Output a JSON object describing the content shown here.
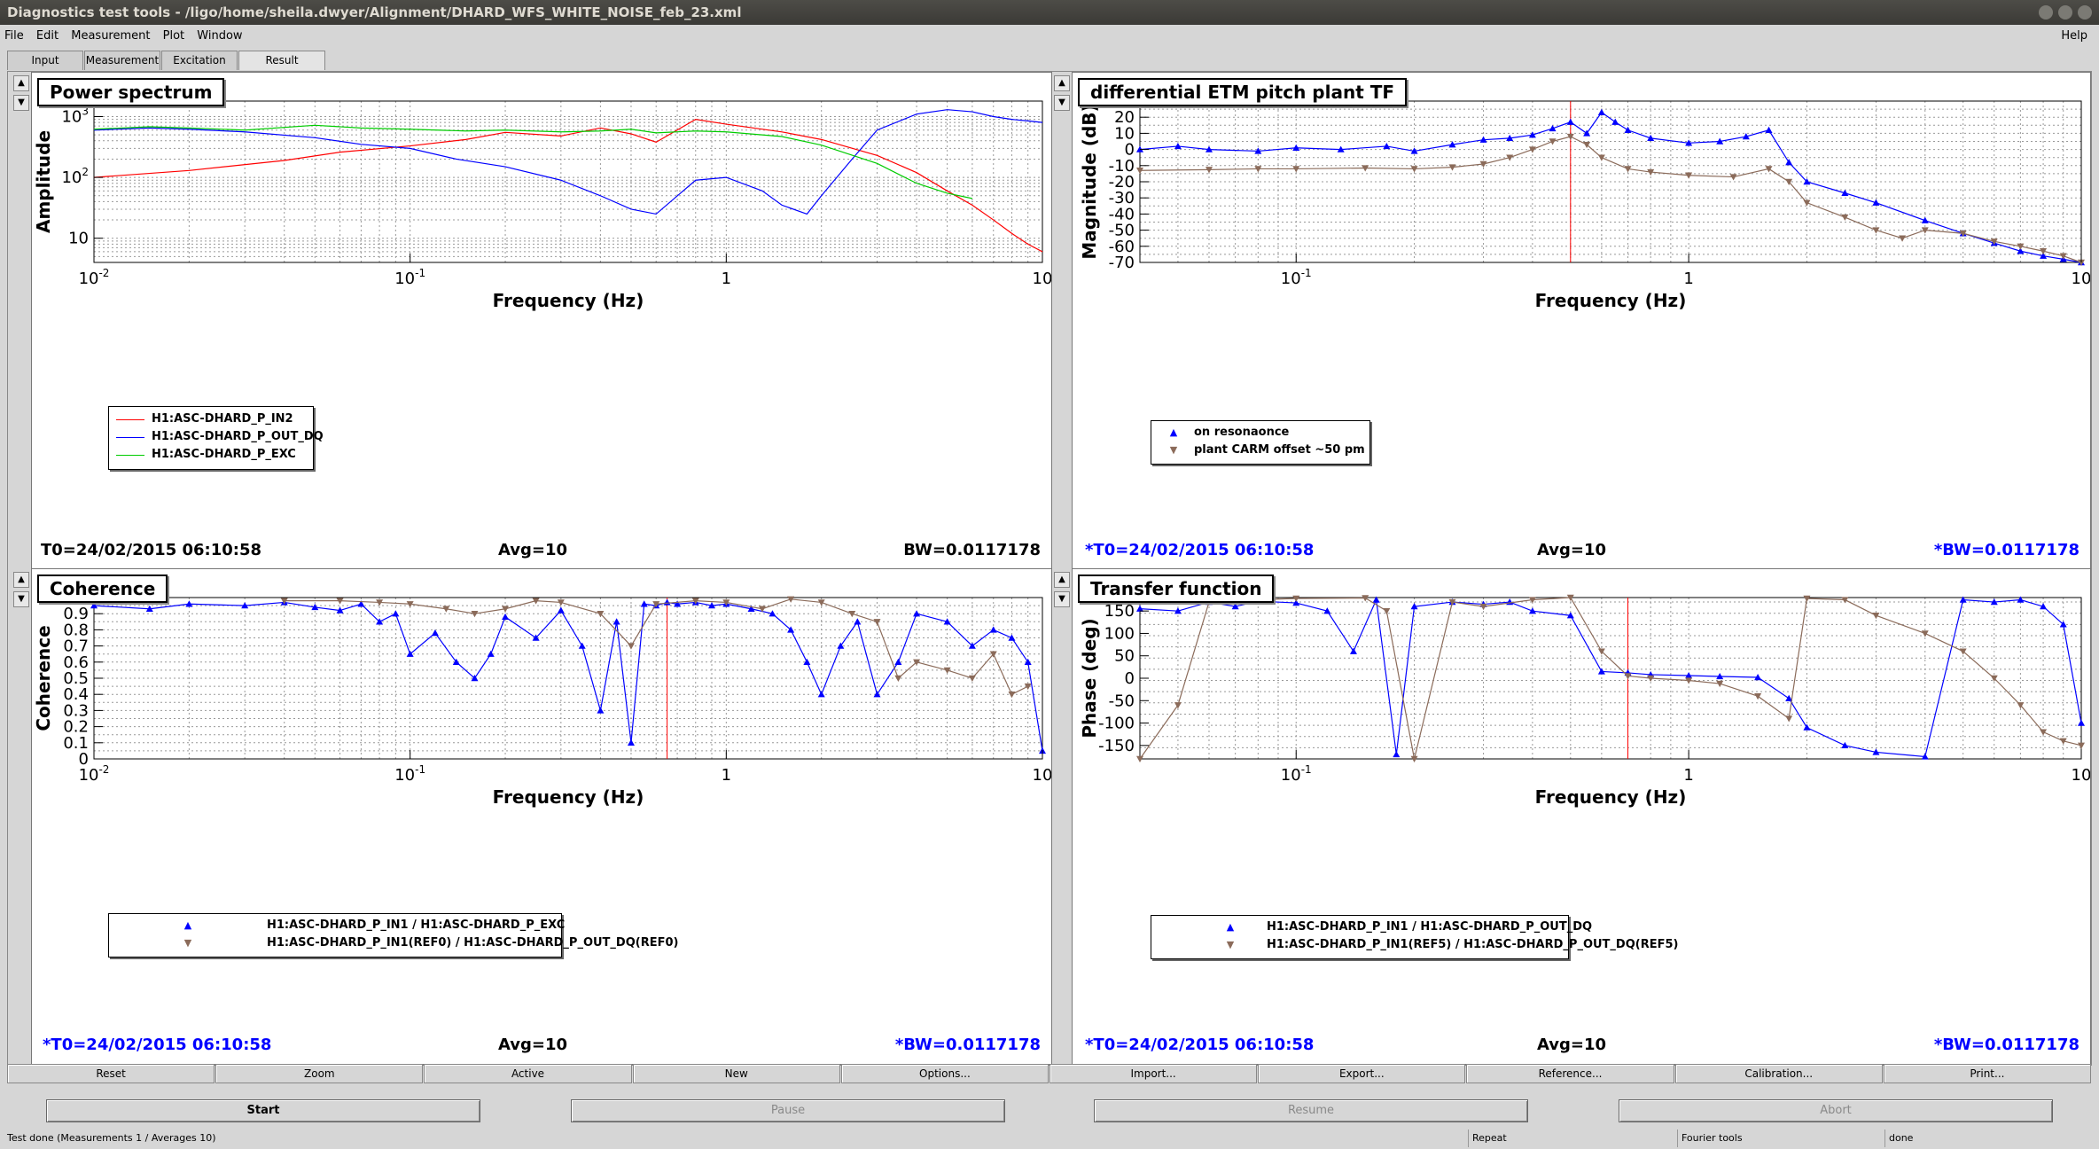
{
  "window": {
    "title": "Diagnostics test tools - /ligo/home/sheila.dwyer/Alignment/DHARD_WFS_WHITE_NOISE_feb_23.xml"
  },
  "menu": {
    "items": [
      "File",
      "Edit",
      "Measurement",
      "Plot",
      "Window"
    ],
    "help": "Help"
  },
  "tabs": [
    {
      "label": "Input"
    },
    {
      "label": "Measurement"
    },
    {
      "label": "Excitation"
    },
    {
      "label": "Result",
      "selected": true
    }
  ],
  "panels": {
    "power_spectrum": {
      "title": "Power spectrum",
      "info": {
        "t0": "T0=24/02/2015 06:10:58",
        "avg": "Avg=10",
        "bw": "BW=0.0117178"
      }
    },
    "etm_tf": {
      "title": "differential ETM pitch plant TF",
      "info": {
        "t0": "*T0=24/02/2015 06:10:58",
        "avg": "Avg=10",
        "bw": "*BW=0.0117178"
      }
    },
    "coherence": {
      "title": "Coherence",
      "info": {
        "t0": "*T0=24/02/2015 06:10:58",
        "avg": "Avg=10",
        "bw": "*BW=0.0117178"
      }
    },
    "transfer_function": {
      "title": "Transfer function",
      "info": {
        "t0": "*T0=24/02/2015 06:10:58",
        "avg": "Avg=10",
        "bw": "*BW=0.0117178"
      }
    }
  },
  "actions": [
    "Reset",
    "Zoom",
    "Active",
    "New",
    "Options...",
    "Import...",
    "Export...",
    "Reference...",
    "Calibration...",
    "Print..."
  ],
  "controls": {
    "start": "Start",
    "pause": "Pause",
    "resume": "Resume",
    "abort": "Abort"
  },
  "status": {
    "message": "Test done (Measurements 1 / Averages 10)",
    "repeat": "Repeat",
    "tool": "Fourier tools",
    "state": "done"
  },
  "colors": {
    "red": "#ff0000",
    "blue": "#0000ff",
    "green": "#00cc00",
    "brown": "#8b6b5a"
  },
  "chart_data": [
    {
      "type": "line",
      "title": "Power spectrum",
      "xlabel": "Frequency (Hz)",
      "ylabel": "Amplitude",
      "xscale": "log",
      "yscale": "log",
      "xlim": [
        0.01,
        10
      ],
      "ylim": [
        4,
        1800
      ],
      "xticks": [
        {
          "v": 0.01,
          "t": "10",
          "e": "-2"
        },
        {
          "v": 0.1,
          "t": "10",
          "e": "-1"
        },
        {
          "v": 1,
          "t": "1",
          "e": ""
        },
        {
          "v": 10,
          "t": "10",
          "e": ""
        }
      ],
      "yticks": [
        {
          "v": 10,
          "t": "10",
          "e": ""
        },
        {
          "v": 100,
          "t": "10",
          "e": "2"
        },
        {
          "v": 1000,
          "t": "10",
          "e": "3"
        }
      ],
      "grid": true,
      "legend": "bottom-left",
      "series": [
        {
          "name": "H1:ASC-DHARD_P_IN2",
          "color": "#ff0000",
          "x": [
            0.01,
            0.02,
            0.04,
            0.06,
            0.1,
            0.15,
            0.2,
            0.3,
            0.4,
            0.5,
            0.6,
            0.8,
            1.0,
            1.5,
            2,
            3,
            4,
            5,
            6,
            7,
            8,
            9,
            10
          ],
          "y": [
            100,
            130,
            190,
            260,
            330,
            420,
            550,
            480,
            650,
            520,
            380,
            900,
            750,
            560,
            420,
            230,
            120,
            60,
            35,
            20,
            12,
            8,
            6
          ]
        },
        {
          "name": "H1:ASC-DHARD_P_OUT_DQ",
          "color": "#0000ff",
          "x": [
            0.01,
            0.015,
            0.02,
            0.03,
            0.05,
            0.07,
            0.1,
            0.14,
            0.2,
            0.3,
            0.4,
            0.5,
            0.6,
            0.8,
            1.0,
            1.3,
            1.5,
            1.8,
            2,
            2.5,
            3,
            4,
            5,
            6,
            7,
            8,
            9,
            10
          ],
          "y": [
            600,
            650,
            620,
            560,
            450,
            350,
            300,
            200,
            150,
            90,
            50,
            30,
            25,
            90,
            100,
            60,
            35,
            25,
            50,
            200,
            600,
            1100,
            1300,
            1200,
            1000,
            900,
            850,
            800
          ]
        },
        {
          "name": "H1:ASC-DHARD_P_EXC",
          "color": "#00cc00",
          "x": [
            0.01,
            0.015,
            0.02,
            0.03,
            0.05,
            0.07,
            0.1,
            0.15,
            0.2,
            0.3,
            0.4,
            0.5,
            0.6,
            0.8,
            1.0,
            1.5,
            2,
            3,
            4,
            5,
            6
          ],
          "y": [
            620,
            680,
            650,
            600,
            720,
            650,
            620,
            580,
            600,
            560,
            580,
            620,
            540,
            580,
            560,
            470,
            340,
            170,
            80,
            55,
            45
          ]
        }
      ]
    },
    {
      "type": "scatter",
      "title": "differential ETM pitch plant TF",
      "xlabel": "Frequency (Hz)",
      "ylabel": "Magnitude (dB)",
      "xscale": "log",
      "xlim": [
        0.04,
        10
      ],
      "ylim": [
        -70,
        30
      ],
      "xticks": [
        {
          "v": 0.1,
          "t": "10",
          "e": "-1"
        },
        {
          "v": 1,
          "t": "1",
          "e": ""
        },
        {
          "v": 10,
          "t": "10",
          "e": ""
        }
      ],
      "yticks": [
        -70,
        -60,
        -50,
        -40,
        -30,
        -20,
        -10,
        0,
        10,
        20,
        30
      ],
      "grid": true,
      "legend": "bottom-left",
      "marker_line": 0.5,
      "series": [
        {
          "name": "on resonaonce",
          "color": "#0000ff",
          "marker": "up",
          "x": [
            0.04,
            0.05,
            0.06,
            0.08,
            0.1,
            0.13,
            0.17,
            0.2,
            0.25,
            0.3,
            0.35,
            0.4,
            0.45,
            0.5,
            0.55,
            0.6,
            0.65,
            0.7,
            0.8,
            1.0,
            1.2,
            1.4,
            1.6,
            1.8,
            2.0,
            2.5,
            3.0,
            4,
            5,
            6,
            7,
            8,
            9,
            10
          ],
          "y": [
            0,
            2,
            0,
            -1,
            1,
            0,
            2,
            -1,
            3,
            6,
            7,
            9,
            13,
            17,
            10,
            23,
            17,
            12,
            7,
            4,
            5,
            8,
            12,
            -8,
            -20,
            -27,
            -33,
            -44,
            -52,
            -58,
            -63,
            -66,
            -68,
            -70
          ]
        },
        {
          "name": "plant CARM offset ~50 pm",
          "color": "#8b6b5a",
          "marker": "down",
          "x": [
            0.04,
            0.06,
            0.08,
            0.1,
            0.15,
            0.2,
            0.25,
            0.3,
            0.35,
            0.4,
            0.45,
            0.5,
            0.55,
            0.6,
            0.7,
            0.8,
            1.0,
            1.3,
            1.6,
            1.8,
            2.0,
            2.5,
            3.0,
            3.5,
            4,
            5,
            6,
            7,
            8,
            9,
            10
          ],
          "y": [
            -13,
            -12.5,
            -12,
            -12,
            -11.5,
            -12,
            -11,
            -9,
            -5,
            0,
            5,
            8,
            3,
            -5,
            -12,
            -14,
            -16,
            -17,
            -12,
            -20,
            -33,
            -42,
            -50,
            -55,
            -50,
            -52,
            -57,
            -60,
            -63,
            -66,
            -70
          ]
        }
      ]
    },
    {
      "type": "scatter",
      "title": "Coherence",
      "xlabel": "Frequency (Hz)",
      "ylabel": "Coherence",
      "xscale": "log",
      "xlim": [
        0.01,
        10
      ],
      "ylim": [
        0,
        1
      ],
      "xticks": [
        {
          "v": 0.01,
          "t": "10",
          "e": "-2"
        },
        {
          "v": 0.1,
          "t": "10",
          "e": "-1"
        },
        {
          "v": 1,
          "t": "1",
          "e": ""
        },
        {
          "v": 10,
          "t": "10",
          "e": ""
        }
      ],
      "yticks": [
        0,
        0.1,
        0.2,
        0.3,
        0.4,
        0.5,
        0.6,
        0.7,
        0.8,
        0.9,
        1
      ],
      "grid": true,
      "legend": "bottom-left",
      "marker_line": 0.65,
      "series": [
        {
          "name": "H1:ASC-DHARD_P_IN1 / H1:ASC-DHARD_P_EXC",
          "color": "#0000ff",
          "marker": "up",
          "x": [
            0.01,
            0.015,
            0.02,
            0.03,
            0.04,
            0.05,
            0.06,
            0.07,
            0.08,
            0.09,
            0.1,
            0.12,
            0.14,
            0.16,
            0.18,
            0.2,
            0.25,
            0.3,
            0.35,
            0.4,
            0.45,
            0.5,
            0.55,
            0.6,
            0.65,
            0.7,
            0.8,
            0.9,
            1.0,
            1.2,
            1.4,
            1.6,
            1.8,
            2.0,
            2.3,
            2.6,
            3.0,
            3.5,
            4,
            5,
            6,
            7,
            8,
            9,
            10
          ],
          "y": [
            0.95,
            0.93,
            0.96,
            0.95,
            0.97,
            0.94,
            0.92,
            0.96,
            0.85,
            0.9,
            0.65,
            0.78,
            0.6,
            0.5,
            0.65,
            0.88,
            0.75,
            0.92,
            0.7,
            0.3,
            0.85,
            0.1,
            0.96,
            0.95,
            0.97,
            0.96,
            0.97,
            0.95,
            0.96,
            0.93,
            0.9,
            0.8,
            0.6,
            0.4,
            0.7,
            0.85,
            0.4,
            0.6,
            0.9,
            0.85,
            0.7,
            0.8,
            0.75,
            0.6,
            0.05
          ]
        },
        {
          "name": "H1:ASC-DHARD_P_IN1(REF0) / H1:ASC-DHARD_P_OUT_DQ(REF0)",
          "color": "#8b6b5a",
          "marker": "down",
          "x": [
            0.04,
            0.06,
            0.08,
            0.1,
            0.13,
            0.16,
            0.2,
            0.25,
            0.3,
            0.4,
            0.5,
            0.6,
            0.8,
            1.0,
            1.3,
            1.6,
            2.0,
            2.5,
            3.0,
            3.5,
            4,
            5,
            6,
            7,
            8,
            9
          ],
          "y": [
            0.98,
            0.98,
            0.97,
            0.96,
            0.93,
            0.9,
            0.93,
            0.98,
            0.97,
            0.9,
            0.7,
            0.96,
            0.98,
            0.97,
            0.93,
            0.99,
            0.97,
            0.9,
            0.85,
            0.5,
            0.6,
            0.55,
            0.5,
            0.65,
            0.4,
            0.45
          ]
        }
      ]
    },
    {
      "type": "scatter",
      "title": "Transfer function",
      "xlabel": "Frequency (Hz)",
      "ylabel": "Phase (deg)",
      "xscale": "log",
      "xlim": [
        0.04,
        10
      ],
      "ylim": [
        -180,
        180
      ],
      "xticks": [
        {
          "v": 0.1,
          "t": "10",
          "e": "-1"
        },
        {
          "v": 1,
          "t": "1",
          "e": ""
        },
        {
          "v": 10,
          "t": "10",
          "e": ""
        }
      ],
      "yticks": [
        -150,
        -100,
        -50,
        0,
        50,
        100,
        150
      ],
      "grid": true,
      "legend": "bottom-left",
      "marker_line": 0.7,
      "series": [
        {
          "name": "H1:ASC-DHARD_P_IN1 / H1:ASC-DHARD_P_OUT_DQ",
          "color": "#0000ff",
          "marker": "up",
          "x": [
            0.04,
            0.05,
            0.06,
            0.07,
            0.08,
            0.1,
            0.12,
            0.14,
            0.16,
            0.18,
            0.2,
            0.25,
            0.3,
            0.35,
            0.4,
            0.5,
            0.6,
            0.7,
            0.8,
            1.0,
            1.2,
            1.5,
            1.8,
            2.0,
            2.5,
            3,
            4,
            5,
            6,
            7,
            8,
            9,
            10
          ],
          "y": [
            155,
            150,
            170,
            160,
            172,
            168,
            150,
            60,
            175,
            -170,
            160,
            170,
            165,
            170,
            150,
            140,
            15,
            12,
            8,
            6,
            4,
            2,
            -45,
            -110,
            -150,
            -165,
            -175,
            175,
            170,
            175,
            160,
            120,
            -100
          ]
        },
        {
          "name": "H1:ASC-DHARD_P_IN1(REF5) / H1:ASC-DHARD_P_OUT_DQ(REF5)",
          "color": "#8b6b5a",
          "marker": "down",
          "x": [
            0.04,
            0.05,
            0.06,
            0.08,
            0.1,
            0.15,
            0.17,
            0.2,
            0.25,
            0.3,
            0.4,
            0.5,
            0.6,
            0.7,
            0.8,
            1.0,
            1.2,
            1.5,
            1.8,
            2.0,
            2.5,
            3,
            4,
            5,
            6,
            7,
            8,
            9,
            10
          ],
          "y": [
            -180,
            -60,
            170,
            175,
            178,
            179,
            150,
            -180,
            170,
            160,
            175,
            180,
            60,
            5,
            0,
            -5,
            -12,
            -40,
            -90,
            178,
            175,
            140,
            100,
            60,
            0,
            -60,
            -120,
            -140,
            -150
          ]
        }
      ]
    }
  ]
}
